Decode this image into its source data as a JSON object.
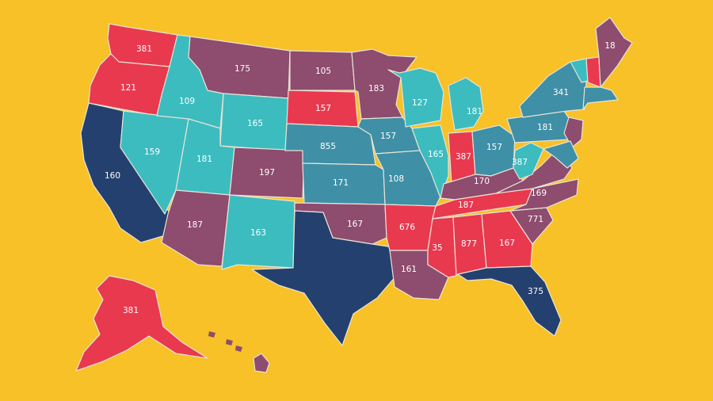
{
  "background": "#f7c127",
  "palette": {
    "teal": "#3cbcbf",
    "steel": "#3f8fa6",
    "mauve": "#8e4c6e",
    "red": "#e8394f",
    "navy": "#24406f"
  },
  "states": [
    {
      "name": "WA",
      "label": "381",
      "color": "red"
    },
    {
      "name": "OR",
      "label": "121",
      "color": "red"
    },
    {
      "name": "CA",
      "label": "160",
      "color": "navy"
    },
    {
      "name": "NV",
      "label": "159",
      "color": "teal"
    },
    {
      "name": "ID",
      "label": "109",
      "color": "teal"
    },
    {
      "name": "MT",
      "label": "175",
      "color": "mauve"
    },
    {
      "name": "WY",
      "label": "165",
      "color": "teal"
    },
    {
      "name": "UT",
      "label": "181",
      "color": "teal"
    },
    {
      "name": "CO",
      "label": "197",
      "color": "mauve"
    },
    {
      "name": "AZ",
      "label": "187",
      "color": "mauve"
    },
    {
      "name": "NM",
      "label": "163",
      "color": "teal"
    },
    {
      "name": "ND",
      "label": "105",
      "color": "mauve"
    },
    {
      "name": "SD",
      "label": "157",
      "color": "red"
    },
    {
      "name": "NE",
      "label": "855",
      "color": "steel"
    },
    {
      "name": "KS",
      "label": "171",
      "color": "steel"
    },
    {
      "name": "OK",
      "label": "167",
      "color": "mauve"
    },
    {
      "name": "TX",
      "label": "",
      "color": "navy"
    },
    {
      "name": "MN",
      "label": "183",
      "color": "mauve"
    },
    {
      "name": "IA",
      "label": "157",
      "color": "steel"
    },
    {
      "name": "MO",
      "label": "108",
      "color": "steel"
    },
    {
      "name": "AR",
      "label": "676",
      "color": "red"
    },
    {
      "name": "LA",
      "label": "161",
      "color": "mauve"
    },
    {
      "name": "WI",
      "label": "127",
      "color": "teal"
    },
    {
      "name": "IL",
      "label": "165",
      "color": "teal"
    },
    {
      "name": "MI",
      "label": "181",
      "color": "teal"
    },
    {
      "name": "IN",
      "label": "387",
      "color": "red"
    },
    {
      "name": "OH",
      "label": "157",
      "color": "steel"
    },
    {
      "name": "KY",
      "label": "170",
      "color": "mauve"
    },
    {
      "name": "TN",
      "label": "187",
      "color": "red"
    },
    {
      "name": "MS",
      "label": "35",
      "color": "red"
    },
    {
      "name": "AL",
      "label": "877",
      "color": "red"
    },
    {
      "name": "GA",
      "label": "167",
      "color": "red"
    },
    {
      "name": "FL",
      "label": "375",
      "color": "navy"
    },
    {
      "name": "SC",
      "label": "771",
      "color": "mauve"
    },
    {
      "name": "NC",
      "label": "169",
      "color": "mauve"
    },
    {
      "name": "VA",
      "label": "",
      "color": "mauve"
    },
    {
      "name": "WV",
      "label": "387",
      "color": "teal"
    },
    {
      "name": "PA",
      "label": "181",
      "color": "steel"
    },
    {
      "name": "NY",
      "label": "341",
      "color": "steel"
    },
    {
      "name": "VT",
      "label": "",
      "color": "teal"
    },
    {
      "name": "NH",
      "label": "",
      "color": "red"
    },
    {
      "name": "ME",
      "label": "18",
      "color": "mauve"
    },
    {
      "name": "MA",
      "label": "",
      "color": "steel"
    },
    {
      "name": "NJ",
      "label": "",
      "color": "mauve"
    },
    {
      "name": "MD",
      "label": "",
      "color": "steel"
    },
    {
      "name": "AK",
      "label": "381",
      "color": "red"
    },
    {
      "name": "HI",
      "label": "",
      "color": "mauve"
    }
  ]
}
